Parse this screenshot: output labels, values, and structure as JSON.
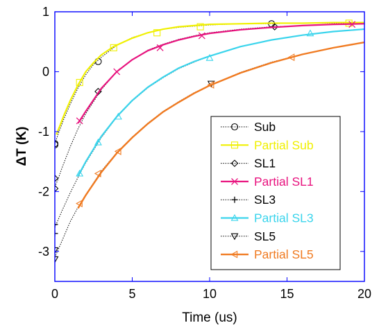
{
  "chart_data": {
    "type": "line",
    "xlabel": "Time (us)",
    "ylabel": "ΔT (K)",
    "xlim": [
      0,
      20
    ],
    "ylim": [
      -3.5,
      1
    ],
    "xticks": [
      0,
      5,
      10,
      15,
      20
    ],
    "xtick_labels": [
      "0",
      "5",
      "10",
      "15",
      "20"
    ],
    "yticks": [
      -3,
      -2,
      -1,
      0,
      1
    ],
    "ytick_labels": [
      "-3",
      "-2",
      "-1",
      "0",
      "1"
    ],
    "grid": false,
    "legend_position": "lower-right",
    "series": [
      {
        "name": "Sub",
        "color": "#000000",
        "dashed": true,
        "marker": "circle",
        "line_width": 1,
        "x": [
          0,
          0.1,
          0.3,
          0.6,
          1.0,
          1.5,
          2.0,
          2.5,
          3.0,
          4.0,
          5.0,
          6.0,
          7.0,
          8.0,
          9.0,
          10.0,
          12.0,
          14.0,
          16.0,
          18.0,
          20.0
        ],
        "y": [
          -1.2,
          -1.13,
          -0.98,
          -0.78,
          -0.54,
          -0.27,
          -0.05,
          0.12,
          0.24,
          0.44,
          0.57,
          0.65,
          0.71,
          0.74,
          0.76,
          0.78,
          0.8,
          0.8,
          0.81,
          0.81,
          0.81
        ],
        "marker_points": [
          [
            0,
            -1.2
          ],
          [
            0,
            -1.22
          ],
          [
            2.8,
            0.17
          ],
          [
            14,
            0.8
          ]
        ]
      },
      {
        "name": "Partial Sub",
        "color": "#f0f000",
        "dashed": false,
        "marker": "square",
        "line_width": 2.2,
        "x": [
          0.1,
          0.3,
          0.6,
          1.0,
          1.5,
          2.0,
          2.5,
          3.0,
          3.8,
          5.0,
          6.0,
          7.0,
          8.0,
          9.0,
          10.0,
          12.0,
          14.0,
          16.0,
          18.0,
          20.0
        ],
        "y": [
          -1.05,
          -0.92,
          -0.72,
          -0.48,
          -0.22,
          0.0,
          0.15,
          0.28,
          0.42,
          0.56,
          0.65,
          0.71,
          0.75,
          0.77,
          0.79,
          0.8,
          0.81,
          0.81,
          0.82,
          0.82
        ],
        "marker_points": [
          [
            1.6,
            -0.18
          ],
          [
            3.8,
            0.4
          ],
          [
            6.6,
            0.65
          ],
          [
            9.4,
            0.75
          ],
          [
            19,
            0.81
          ]
        ]
      },
      {
        "name": "SL1",
        "color": "#000000",
        "dashed": true,
        "marker": "diamond",
        "line_width": 1,
        "x": [
          0,
          0.2,
          0.5,
          1.0,
          1.5,
          2.0,
          3.0,
          4.0,
          5.0,
          6.0,
          7.0,
          8.0,
          9.0,
          10.0,
          12.0,
          14.0,
          16.0,
          18.0,
          20.0
        ],
        "y": [
          -1.92,
          -1.8,
          -1.58,
          -1.25,
          -0.95,
          -0.7,
          -0.3,
          0.0,
          0.2,
          0.36,
          0.46,
          0.54,
          0.6,
          0.65,
          0.71,
          0.75,
          0.77,
          0.79,
          0.8
        ],
        "marker_points": [
          [
            0,
            -1.78
          ],
          [
            0,
            -1.95
          ],
          [
            2.8,
            -0.33
          ],
          [
            14.2,
            0.75
          ]
        ]
      },
      {
        "name": "Partial SL1",
        "color": "#e8127e",
        "dashed": false,
        "marker": "x",
        "line_width": 2.2,
        "x": [
          1.5,
          2.0,
          3.0,
          4.0,
          5.0,
          6.0,
          7.0,
          8.0,
          9.0,
          10.0,
          12.0,
          14.0,
          16.0,
          18.0,
          20.0
        ],
        "y": [
          -0.86,
          -0.66,
          -0.28,
          0.0,
          0.2,
          0.35,
          0.45,
          0.53,
          0.59,
          0.64,
          0.7,
          0.74,
          0.77,
          0.79,
          0.8
        ],
        "marker_points": [
          [
            1.6,
            -0.82
          ],
          [
            4.0,
            0.0
          ],
          [
            6.8,
            0.4
          ],
          [
            9.5,
            0.6
          ],
          [
            19.2,
            0.79
          ]
        ]
      },
      {
        "name": "SL3",
        "color": "#000000",
        "dashed": true,
        "marker": "plus",
        "line_width": 1,
        "x": [
          0,
          0.2,
          0.5,
          1.0,
          1.5,
          2.0,
          3.0,
          4.0,
          5.0,
          6.0,
          7.0,
          8.0,
          9.0,
          10.0,
          12.0,
          14.0,
          16.0,
          18.0,
          20.0
        ],
        "y": [
          -2.6,
          -2.48,
          -2.3,
          -2.02,
          -1.76,
          -1.52,
          -1.1,
          -0.76,
          -0.49,
          -0.27,
          -0.1,
          0.05,
          0.16,
          0.26,
          0.42,
          0.53,
          0.61,
          0.67,
          0.71
        ],
        "marker_points": [
          [
            0,
            -2.55
          ],
          [
            0,
            -2.7
          ]
        ]
      },
      {
        "name": "Partial SL3",
        "color": "#39d4ec",
        "dashed": false,
        "marker": "triangle-up",
        "line_width": 2.2,
        "x": [
          1.5,
          2.0,
          3.0,
          4.0,
          5.0,
          6.0,
          7.0,
          8.0,
          9.0,
          10.0,
          12.0,
          14.0,
          16.0,
          18.0,
          20.0
        ],
        "y": [
          -1.74,
          -1.5,
          -1.08,
          -0.75,
          -0.48,
          -0.26,
          -0.09,
          0.06,
          0.17,
          0.26,
          0.42,
          0.53,
          0.61,
          0.67,
          0.71
        ],
        "marker_points": [
          [
            1.6,
            -1.7
          ],
          [
            2.8,
            -1.18
          ],
          [
            4.1,
            -0.75
          ],
          [
            10,
            0.23
          ],
          [
            16.5,
            0.64
          ]
        ]
      },
      {
        "name": "SL5",
        "color": "#000000",
        "dashed": true,
        "marker": "triangle-down",
        "line_width": 1,
        "x": [
          0,
          0.2,
          0.5,
          1.0,
          1.5,
          2.0,
          3.0,
          4.0,
          5.0,
          6.0,
          7.0,
          8.0,
          9.0,
          10.0,
          12.0,
          14.0,
          16.0,
          18.0,
          20.0
        ],
        "y": [
          -3.1,
          -2.98,
          -2.8,
          -2.5,
          -2.26,
          -2.05,
          -1.66,
          -1.35,
          -1.09,
          -0.86,
          -0.66,
          -0.5,
          -0.35,
          -0.23,
          -0.01,
          0.16,
          0.29,
          0.4,
          0.49
        ],
        "marker_points": [
          [
            0,
            -2.98
          ],
          [
            0,
            -3.13
          ],
          [
            10.1,
            -0.2
          ]
        ]
      },
      {
        "name": "Partial SL5",
        "color": "#f07a20",
        "dashed": false,
        "marker": "triangle-left",
        "line_width": 2.4,
        "x": [
          1.5,
          2.0,
          3.0,
          4.0,
          5.0,
          6.0,
          7.0,
          8.0,
          9.0,
          10.0,
          12.0,
          14.0,
          16.0,
          18.0,
          20.0
        ],
        "y": [
          -2.28,
          -2.06,
          -1.68,
          -1.36,
          -1.1,
          -0.87,
          -0.67,
          -0.51,
          -0.36,
          -0.23,
          -0.02,
          0.15,
          0.29,
          0.4,
          0.49
        ],
        "marker_points": [
          [
            1.6,
            -2.2
          ],
          [
            2.8,
            -1.7
          ],
          [
            4.1,
            -1.33
          ],
          [
            10.1,
            -0.22
          ],
          [
            15.3,
            0.24
          ]
        ]
      }
    ]
  }
}
